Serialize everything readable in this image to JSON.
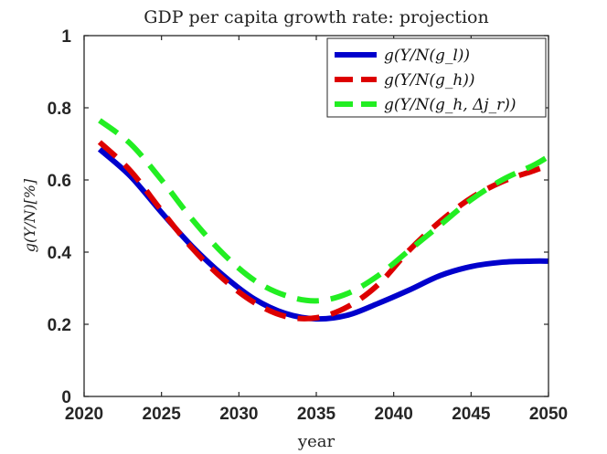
{
  "chart_data": {
    "type": "line",
    "title": "GDP per capita growth rate: projection",
    "xlabel": "year",
    "ylabel": "g(Y/N)[%]",
    "xlim": [
      2020,
      2050
    ],
    "ylim": [
      0,
      1
    ],
    "xticks": [
      2020,
      2025,
      2030,
      2035,
      2040,
      2045,
      2050
    ],
    "xtick_labels": [
      "2020",
      "2025",
      "2030",
      "2035",
      "2040",
      "2045",
      "2050"
    ],
    "yticks": [
      0,
      0.2,
      0.4,
      0.6,
      0.8,
      1
    ],
    "ytick_labels": [
      "0",
      "0.2",
      "0.4",
      "0.6",
      "0.8",
      "1"
    ],
    "grid": false,
    "legend_position": "top-right",
    "series": [
      {
        "name": "g(Y/N(g_l))",
        "color": "#0000cc",
        "style": "solid",
        "x": [
          2021,
          2023,
          2025,
          2027,
          2029,
          2031,
          2033,
          2035,
          2037,
          2039,
          2041,
          2043,
          2045,
          2047,
          2049,
          2050
        ],
        "y": [
          0.685,
          0.61,
          0.51,
          0.415,
          0.335,
          0.27,
          0.23,
          0.215,
          0.225,
          0.258,
          0.295,
          0.335,
          0.36,
          0.372,
          0.375,
          0.375
        ]
      },
      {
        "name": "g(Y/N(g_h))",
        "color": "#dd0000",
        "style": "dashed",
        "x": [
          2021,
          2023,
          2025,
          2027,
          2029,
          2031,
          2033,
          2035,
          2037,
          2039,
          2041,
          2043,
          2045,
          2047,
          2049,
          2050
        ],
        "y": [
          0.705,
          0.625,
          0.515,
          0.41,
          0.325,
          0.26,
          0.222,
          0.218,
          0.248,
          0.31,
          0.405,
          0.485,
          0.55,
          0.595,
          0.625,
          0.64
        ]
      },
      {
        "name": "g(Y/N(g_h, Δj_r))",
        "color": "#22ee22",
        "style": "dashed",
        "x": [
          2021,
          2023,
          2025,
          2027,
          2029,
          2031,
          2033,
          2035,
          2037,
          2039,
          2041,
          2043,
          2045,
          2047,
          2049,
          2050
        ],
        "y": [
          0.765,
          0.7,
          0.6,
          0.49,
          0.395,
          0.322,
          0.28,
          0.265,
          0.285,
          0.335,
          0.405,
          0.475,
          0.545,
          0.6,
          0.64,
          0.665
        ]
      }
    ]
  }
}
